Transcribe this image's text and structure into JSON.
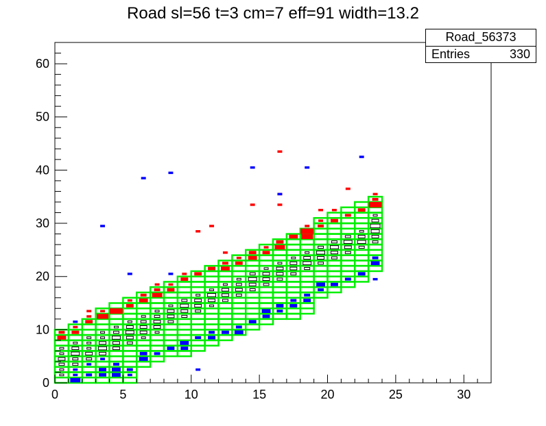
{
  "chart_data": {
    "type": "heatmap",
    "title": "Road sl=56 t=3 cm=7 eff=91 width=13.2",
    "stats": {
      "name": "Road_56373",
      "entries_label": "Entries",
      "entries": "330"
    },
    "xlim": [
      0,
      32
    ],
    "ylim": [
      0,
      64
    ],
    "x_ticks": [
      0,
      5,
      10,
      15,
      20,
      25,
      30
    ],
    "y_ticks": [
      0,
      10,
      20,
      30,
      40,
      50,
      60
    ],
    "colors": {
      "road": "#00ee00",
      "red": "#ff0000",
      "blue": "#0000ff",
      "black": "#000000"
    },
    "road_bins": [
      {
        "x": 0,
        "ylo": 0,
        "yhi": 10
      },
      {
        "x": 1,
        "ylo": 0,
        "yhi": 11
      },
      {
        "x": 2,
        "ylo": 0,
        "yhi": 12
      },
      {
        "x": 3,
        "ylo": 0,
        "yhi": 14
      },
      {
        "x": 4,
        "ylo": 0,
        "yhi": 15
      },
      {
        "x": 5,
        "ylo": 0,
        "yhi": 16
      },
      {
        "x": 6,
        "ylo": 3,
        "yhi": 17
      },
      {
        "x": 7,
        "ylo": 4,
        "yhi": 18
      },
      {
        "x": 8,
        "ylo": 5,
        "yhi": 19
      },
      {
        "x": 9,
        "ylo": 5,
        "yhi": 20
      },
      {
        "x": 10,
        "ylo": 6,
        "yhi": 21
      },
      {
        "x": 11,
        "ylo": 7,
        "yhi": 22
      },
      {
        "x": 12,
        "ylo": 8,
        "yhi": 23
      },
      {
        "x": 13,
        "ylo": 9,
        "yhi": 24
      },
      {
        "x": 14,
        "ylo": 10,
        "yhi": 25
      },
      {
        "x": 15,
        "ylo": 11,
        "yhi": 26
      },
      {
        "x": 16,
        "ylo": 12,
        "yhi": 27
      },
      {
        "x": 17,
        "ylo": 12,
        "yhi": 28
      },
      {
        "x": 18,
        "ylo": 13,
        "yhi": 29
      },
      {
        "x": 19,
        "ylo": 16,
        "yhi": 31
      },
      {
        "x": 20,
        "ylo": 17,
        "yhi": 32
      },
      {
        "x": 21,
        "ylo": 18,
        "yhi": 33
      },
      {
        "x": 22,
        "ylo": 19,
        "yhi": 34
      },
      {
        "x": 23,
        "ylo": 21,
        "yhi": 35
      }
    ],
    "red_cells": [
      [
        0,
        8,
        0.6
      ],
      [
        0,
        9,
        0.4
      ],
      [
        1,
        9,
        0.5
      ],
      [
        1,
        10,
        0.3
      ],
      [
        2,
        11,
        0.5
      ],
      [
        2,
        12,
        0.3
      ],
      [
        3,
        12,
        0.8
      ],
      [
        3,
        13,
        0.3
      ],
      [
        4,
        13,
        0.9
      ],
      [
        5,
        14,
        0.5
      ],
      [
        5,
        15,
        0.3
      ],
      [
        6,
        15,
        0.6
      ],
      [
        6,
        16,
        0.4
      ],
      [
        7,
        16,
        0.7
      ],
      [
        7,
        17,
        0.4
      ],
      [
        8,
        17,
        0.5
      ],
      [
        8,
        18,
        0.3
      ],
      [
        9,
        19,
        0.5
      ],
      [
        9,
        20,
        0.3
      ],
      [
        10,
        20,
        0.5
      ],
      [
        11,
        21,
        0.5
      ],
      [
        12,
        21,
        0.6
      ],
      [
        12,
        22,
        0.4
      ],
      [
        13,
        22,
        0.5
      ],
      [
        13,
        23,
        0.3
      ],
      [
        14,
        23,
        0.6
      ],
      [
        14,
        24,
        0.5
      ],
      [
        15,
        24,
        0.5
      ],
      [
        15,
        25,
        0.3
      ],
      [
        16,
        25,
        0.7
      ],
      [
        16,
        26,
        0.5
      ],
      [
        17,
        27,
        0.6
      ],
      [
        18,
        27,
        0.8
      ],
      [
        18,
        28,
        0.9
      ],
      [
        19,
        29,
        0.4
      ],
      [
        19,
        30,
        0.3
      ],
      [
        20,
        30,
        0.5
      ],
      [
        21,
        31,
        0.4
      ],
      [
        22,
        32,
        0.5
      ],
      [
        23,
        33,
        0.9
      ],
      [
        23,
        34,
        0.4
      ],
      [
        2,
        13,
        0.3
      ],
      [
        7,
        18,
        0.3
      ],
      [
        10,
        28,
        0.3
      ],
      [
        11,
        29,
        0.3
      ],
      [
        12,
        24,
        0.3
      ],
      [
        14,
        33,
        0.3
      ],
      [
        16,
        33,
        0.3
      ],
      [
        16,
        35,
        0.3
      ],
      [
        16,
        43,
        0.3
      ],
      [
        18,
        29,
        0.3
      ],
      [
        19,
        32,
        0.3
      ],
      [
        20,
        32,
        0.3
      ],
      [
        21,
        36,
        0.3
      ],
      [
        23,
        35,
        0.3
      ]
    ],
    "blue_cells": [
      [
        1,
        0,
        0.7
      ],
      [
        1,
        1,
        0.3
      ],
      [
        2,
        1,
        0.4
      ],
      [
        3,
        1,
        0.5
      ],
      [
        3,
        2,
        0.5
      ],
      [
        4,
        1,
        0.6
      ],
      [
        4,
        2,
        0.6
      ],
      [
        4,
        3,
        0.4
      ],
      [
        5,
        1,
        0.3
      ],
      [
        5,
        2,
        0.4
      ],
      [
        6,
        4,
        0.6
      ],
      [
        6,
        5,
        0.5
      ],
      [
        7,
        5,
        0.4
      ],
      [
        8,
        6,
        0.5
      ],
      [
        9,
        6,
        0.5
      ],
      [
        9,
        7,
        0.6
      ],
      [
        10,
        8,
        0.4
      ],
      [
        11,
        8,
        0.5
      ],
      [
        11,
        9,
        0.4
      ],
      [
        12,
        9,
        0.5
      ],
      [
        13,
        9,
        0.6
      ],
      [
        13,
        10,
        0.4
      ],
      [
        14,
        11,
        0.5
      ],
      [
        15,
        12,
        0.5
      ],
      [
        15,
        13,
        0.6
      ],
      [
        16,
        13,
        0.4
      ],
      [
        16,
        14,
        0.5
      ],
      [
        17,
        14,
        0.5
      ],
      [
        17,
        15,
        0.4
      ],
      [
        18,
        15,
        0.5
      ],
      [
        18,
        16,
        0.4
      ],
      [
        19,
        17,
        0.4
      ],
      [
        19,
        18,
        0.6
      ],
      [
        20,
        18,
        0.5
      ],
      [
        21,
        19,
        0.4
      ],
      [
        22,
        20,
        0.5
      ],
      [
        23,
        22,
        0.6
      ],
      [
        23,
        23,
        0.4
      ],
      [
        1,
        2,
        0.3
      ],
      [
        2,
        3,
        0.3
      ],
      [
        3,
        4,
        0.3
      ],
      [
        1,
        11,
        0.3
      ],
      [
        3,
        29,
        0.3
      ],
      [
        5,
        20,
        0.3
      ],
      [
        6,
        38,
        0.3
      ],
      [
        8,
        20,
        0.3
      ],
      [
        8,
        39,
        0.3
      ],
      [
        10,
        2,
        0.3
      ],
      [
        14,
        40,
        0.3
      ],
      [
        16,
        35,
        0.3
      ],
      [
        18,
        40,
        0.3
      ],
      [
        22,
        42,
        0.3
      ],
      [
        23,
        19,
        0.3
      ]
    ],
    "black_cells": [
      [
        0,
        1,
        0.3
      ],
      [
        0,
        2,
        0.3
      ],
      [
        0,
        3,
        0.4
      ],
      [
        0,
        4,
        0.5
      ],
      [
        0,
        5,
        0.3
      ],
      [
        0,
        6,
        0.3
      ],
      [
        1,
        3,
        0.4
      ],
      [
        1,
        4,
        0.4
      ],
      [
        1,
        5,
        0.6
      ],
      [
        1,
        6,
        0.5
      ],
      [
        1,
        7,
        0.3
      ],
      [
        2,
        4,
        0.4
      ],
      [
        2,
        5,
        0.5
      ],
      [
        2,
        6,
        0.3
      ],
      [
        2,
        7,
        0.3
      ],
      [
        2,
        8,
        0.3
      ],
      [
        3,
        5,
        0.5
      ],
      [
        3,
        6,
        0.6
      ],
      [
        3,
        7,
        0.5
      ],
      [
        3,
        8,
        0.3
      ],
      [
        3,
        9,
        0.3
      ],
      [
        4,
        6,
        0.5
      ],
      [
        4,
        7,
        0.5
      ],
      [
        4,
        8,
        0.6
      ],
      [
        4,
        9,
        0.4
      ],
      [
        4,
        10,
        0.3
      ],
      [
        5,
        7,
        0.4
      ],
      [
        5,
        8,
        0.5
      ],
      [
        5,
        9,
        0.6
      ],
      [
        5,
        10,
        0.5
      ],
      [
        5,
        11,
        0.3
      ],
      [
        6,
        8,
        0.3
      ],
      [
        6,
        9,
        0.5
      ],
      [
        6,
        10,
        0.5
      ],
      [
        6,
        11,
        0.4
      ],
      [
        6,
        12,
        0.3
      ],
      [
        7,
        9,
        0.3
      ],
      [
        7,
        10,
        0.5
      ],
      [
        7,
        11,
        0.5
      ],
      [
        7,
        12,
        0.4
      ],
      [
        7,
        13,
        0.3
      ],
      [
        8,
        11,
        0.4
      ],
      [
        8,
        12,
        0.5
      ],
      [
        8,
        13,
        0.5
      ],
      [
        8,
        14,
        0.3
      ],
      [
        9,
        12,
        0.4
      ],
      [
        9,
        13,
        0.5
      ],
      [
        9,
        14,
        0.6
      ],
      [
        9,
        15,
        0.4
      ],
      [
        10,
        13,
        0.4
      ],
      [
        10,
        14,
        0.5
      ],
      [
        10,
        15,
        0.5
      ],
      [
        10,
        16,
        0.3
      ],
      [
        11,
        14,
        0.3
      ],
      [
        11,
        15,
        0.5
      ],
      [
        11,
        16,
        0.6
      ],
      [
        11,
        17,
        0.3
      ],
      [
        12,
        15,
        0.4
      ],
      [
        12,
        16,
        0.5
      ],
      [
        12,
        17,
        0.5
      ],
      [
        12,
        18,
        0.3
      ],
      [
        13,
        16,
        0.4
      ],
      [
        13,
        17,
        0.5
      ],
      [
        13,
        18,
        0.4
      ],
      [
        13,
        19,
        0.3
      ],
      [
        14,
        17,
        0.4
      ],
      [
        14,
        18,
        0.5
      ],
      [
        14,
        19,
        0.6
      ],
      [
        14,
        20,
        0.4
      ],
      [
        15,
        18,
        0.4
      ],
      [
        15,
        19,
        0.5
      ],
      [
        15,
        20,
        0.5
      ],
      [
        15,
        21,
        0.3
      ],
      [
        16,
        19,
        0.4
      ],
      [
        16,
        20,
        0.5
      ],
      [
        16,
        21,
        0.5
      ],
      [
        16,
        22,
        0.3
      ],
      [
        17,
        20,
        0.4
      ],
      [
        17,
        21,
        0.5
      ],
      [
        17,
        22,
        0.5
      ],
      [
        17,
        23,
        0.3
      ],
      [
        18,
        21,
        0.4
      ],
      [
        18,
        22,
        0.6
      ],
      [
        18,
        23,
        0.5
      ],
      [
        18,
        24,
        0.3
      ],
      [
        19,
        22,
        0.4
      ],
      [
        19,
        23,
        0.5
      ],
      [
        19,
        24,
        0.6
      ],
      [
        19,
        25,
        0.4
      ],
      [
        20,
        23,
        0.4
      ],
      [
        20,
        24,
        0.5
      ],
      [
        20,
        25,
        0.6
      ],
      [
        20,
        26,
        0.4
      ],
      [
        21,
        24,
        0.4
      ],
      [
        21,
        25,
        0.5
      ],
      [
        21,
        26,
        0.6
      ],
      [
        21,
        27,
        0.4
      ],
      [
        22,
        25,
        0.4
      ],
      [
        22,
        26,
        0.6
      ],
      [
        22,
        27,
        0.5
      ],
      [
        22,
        28,
        0.3
      ],
      [
        23,
        26,
        0.4
      ],
      [
        23,
        27,
        0.5
      ],
      [
        23,
        28,
        0.6
      ],
      [
        23,
        29,
        0.7
      ],
      [
        23,
        30,
        0.5
      ],
      [
        23,
        31,
        0.3
      ]
    ]
  }
}
